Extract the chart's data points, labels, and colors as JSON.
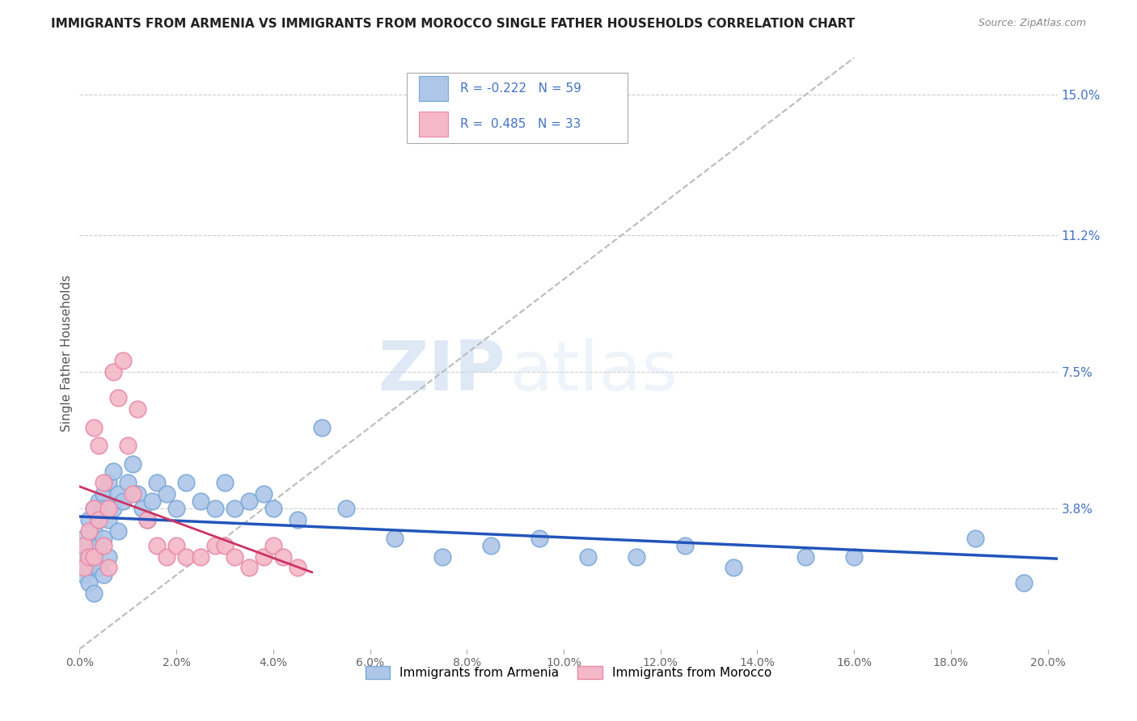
{
  "title": "IMMIGRANTS FROM ARMENIA VS IMMIGRANTS FROM MOROCCO SINGLE FATHER HOUSEHOLDS CORRELATION CHART",
  "source": "Source: ZipAtlas.com",
  "xlabel_ticks": [
    "0.0%",
    "2.0%",
    "4.0%",
    "6.0%",
    "8.0%",
    "10.0%",
    "12.0%",
    "14.0%",
    "16.0%",
    "18.0%",
    "20.0%"
  ],
  "xlabel_vals": [
    0.0,
    0.02,
    0.04,
    0.06,
    0.08,
    0.1,
    0.12,
    0.14,
    0.16,
    0.18,
    0.2
  ],
  "ylabel": "Single Father Households",
  "ylabel_ticks_right": [
    "15.0%",
    "11.2%",
    "7.5%",
    "3.8%"
  ],
  "ylabel_vals": [
    0.15,
    0.112,
    0.075,
    0.038
  ],
  "xlim": [
    0.0,
    0.202
  ],
  "ylim": [
    0.0,
    0.16
  ],
  "armenia_color": "#aec6e8",
  "morocco_color": "#f4b8c8",
  "armenia_edge": "#7aa8d8",
  "morocco_edge": "#e88aa8",
  "trend_armenia_color": "#2255bb",
  "trend_morocco_color": "#cc3366",
  "diag_color": "#bbbbbb",
  "legend_armenia_R": "-0.222",
  "legend_armenia_N": "59",
  "legend_morocco_R": "0.485",
  "legend_morocco_N": "33",
  "legend_label_armenia": "Immigrants from Armenia",
  "legend_label_morocco": "Immigrants from Morocco",
  "watermark_zip": "ZIP",
  "watermark_atlas": "atlas",
  "armenia_x": [
    0.001,
    0.001,
    0.001,
    0.002,
    0.002,
    0.002,
    0.002,
    0.003,
    0.003,
    0.003,
    0.003,
    0.004,
    0.004,
    0.004,
    0.004,
    0.005,
    0.005,
    0.005,
    0.005,
    0.006,
    0.006,
    0.006,
    0.007,
    0.007,
    0.008,
    0.008,
    0.009,
    0.01,
    0.011,
    0.012,
    0.013,
    0.014,
    0.015,
    0.016,
    0.018,
    0.02,
    0.022,
    0.025,
    0.028,
    0.03,
    0.032,
    0.035,
    0.038,
    0.04,
    0.045,
    0.05,
    0.055,
    0.065,
    0.075,
    0.085,
    0.095,
    0.105,
    0.115,
    0.125,
    0.135,
    0.15,
    0.16,
    0.185,
    0.195
  ],
  "armenia_y": [
    0.03,
    0.025,
    0.02,
    0.035,
    0.028,
    0.022,
    0.018,
    0.038,
    0.032,
    0.025,
    0.015,
    0.04,
    0.035,
    0.028,
    0.022,
    0.042,
    0.038,
    0.03,
    0.02,
    0.045,
    0.035,
    0.025,
    0.048,
    0.038,
    0.042,
    0.032,
    0.04,
    0.045,
    0.05,
    0.042,
    0.038,
    0.035,
    0.04,
    0.045,
    0.042,
    0.038,
    0.045,
    0.04,
    0.038,
    0.045,
    0.038,
    0.04,
    0.042,
    0.038,
    0.035,
    0.06,
    0.038,
    0.03,
    0.025,
    0.028,
    0.03,
    0.025,
    0.025,
    0.028,
    0.022,
    0.025,
    0.025,
    0.03,
    0.018
  ],
  "morocco_x": [
    0.001,
    0.001,
    0.002,
    0.002,
    0.003,
    0.003,
    0.003,
    0.004,
    0.004,
    0.005,
    0.005,
    0.006,
    0.006,
    0.007,
    0.008,
    0.009,
    0.01,
    0.011,
    0.012,
    0.014,
    0.016,
    0.018,
    0.02,
    0.022,
    0.025,
    0.028,
    0.03,
    0.032,
    0.035,
    0.038,
    0.04,
    0.042,
    0.045
  ],
  "morocco_y": [
    0.028,
    0.022,
    0.032,
    0.025,
    0.06,
    0.038,
    0.025,
    0.055,
    0.035,
    0.045,
    0.028,
    0.038,
    0.022,
    0.075,
    0.068,
    0.078,
    0.055,
    0.042,
    0.065,
    0.035,
    0.028,
    0.025,
    0.028,
    0.025,
    0.025,
    0.028,
    0.028,
    0.025,
    0.022,
    0.025,
    0.028,
    0.025,
    0.022
  ]
}
